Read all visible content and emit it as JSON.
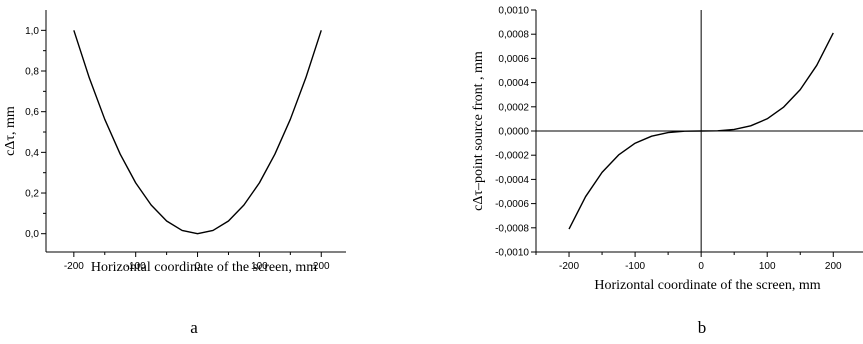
{
  "chart_data": [
    {
      "type": "line",
      "panel_label": "a",
      "xlabel": "Horizontal coordinate of the screen, mm",
      "ylabel": "cΔτ, mm",
      "xlim": [
        -245,
        240
      ],
      "ylim": [
        -0.09,
        1.1
      ],
      "x_ticks": [
        -200,
        -100,
        0,
        100,
        200
      ],
      "x_tick_labels": [
        "-200",
        "-100",
        "0",
        "100",
        "200"
      ],
      "y_ticks": [
        0.0,
        0.2,
        0.4,
        0.6,
        0.8,
        1.0
      ],
      "y_tick_labels": [
        "0,0",
        "0,2",
        "0,4",
        "0,6",
        "0,8",
        "1,0"
      ],
      "grid": false,
      "series": [
        {
          "x": [
            -200,
            -175,
            -150,
            -125,
            -100,
            -75,
            -50,
            -25,
            0,
            25,
            50,
            75,
            100,
            125,
            150,
            175,
            200
          ],
          "y": [
            1.0,
            0.766,
            0.5625,
            0.391,
            0.25,
            0.141,
            0.0625,
            0.016,
            0.0,
            0.016,
            0.0625,
            0.141,
            0.25,
            0.391,
            0.5625,
            0.766,
            1.0
          ]
        }
      ]
    },
    {
      "type": "line",
      "panel_label": "b",
      "xlabel": "Horizontal coordinate of the screen, mm",
      "ylabel": "cΔτ–point source front , mm",
      "xlim": [
        -250,
        245
      ],
      "ylim": [
        -0.001,
        0.001
      ],
      "x_ticks": [
        -200,
        -100,
        0,
        100,
        200
      ],
      "x_tick_labels": [
        "-200",
        "-100",
        "0",
        "100",
        "200"
      ],
      "y_ticks": [
        -0.001,
        -0.0008,
        -0.0006,
        -0.0004,
        -0.0002,
        0.0,
        0.0002,
        0.0004,
        0.0006,
        0.0008,
        0.001
      ],
      "y_tick_labels": [
        "-0,0010",
        "-0,0008",
        "-0,0006",
        "-0,0004",
        "-0,0002",
        "0,0000",
        "0,0002",
        "0,0004",
        "0,0006",
        "0,0008",
        "0,0010"
      ],
      "grid": false,
      "series": [
        {
          "x": [
            -200,
            -175,
            -150,
            -125,
            -100,
            -75,
            -50,
            -25,
            0,
            25,
            50,
            75,
            100,
            125,
            150,
            175,
            200
          ],
          "y": [
            -0.00081,
            -0.000543,
            -0.000342,
            -0.000198,
            -0.000101,
            -4.27e-05,
            -1.27e-05,
            -1.6e-06,
            0.0,
            1.6e-06,
            1.27e-05,
            4.27e-05,
            0.000101,
            0.000198,
            0.000342,
            0.000543,
            0.00081
          ]
        }
      ]
    }
  ]
}
